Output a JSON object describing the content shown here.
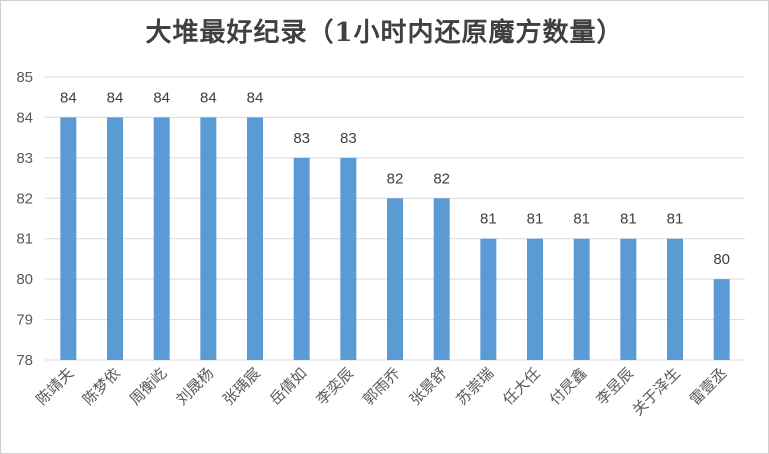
{
  "chart_data": {
    "type": "bar",
    "title": "大堆最好纪录（1小时内还原魔方数量）",
    "xlabel": "",
    "ylabel": "",
    "ylim": [
      78,
      85
    ],
    "yticks": [
      78,
      79,
      80,
      81,
      82,
      83,
      84,
      85
    ],
    "grid": true,
    "categories": [
      "陈靖夫",
      "陈梦依",
      "周衡屹",
      "刘晟杨",
      "张瑀宸",
      "岳倩如",
      "李奕辰",
      "郭雨乔",
      "张景舒",
      "苏崇瑞",
      "任大任",
      "付昃鑫",
      "李昱辰",
      "关于泽生",
      "雷壹丞"
    ],
    "values": [
      84,
      84,
      84,
      84,
      84,
      83,
      83,
      82,
      82,
      81,
      81,
      81,
      81,
      81,
      80
    ],
    "bar_color": "#5b9bd5"
  }
}
